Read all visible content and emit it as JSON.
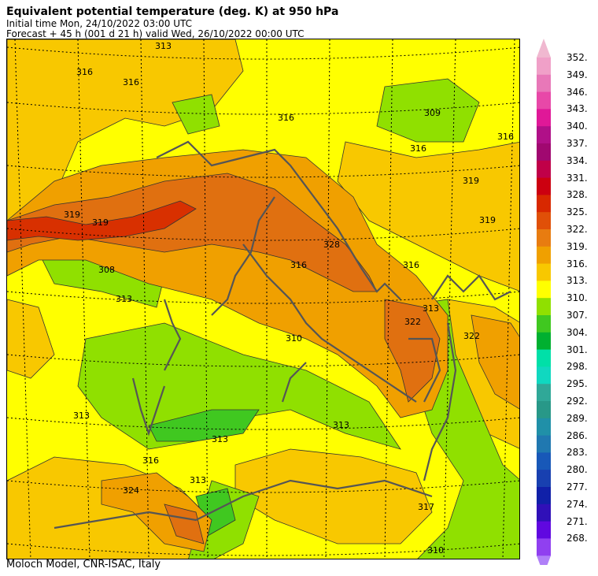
{
  "header": {
    "title": "Equivalent potential temperature (deg. K) at 950 hPa",
    "initial_time": "Initial time  Mon, 24/10/2022  03:00 UTC",
    "forecast": "Forecast  +  45 h  (001 d 21 h)  valid Wed, 26/10/2022 00:00 UTC"
  },
  "footer": "Moloch Model, CNR-ISAC, Italy",
  "contour_labels": [
    "316",
    "313",
    "316",
    "319",
    "316",
    "316",
    "316",
    "319",
    "319",
    "328",
    "308",
    "313",
    "310",
    "313",
    "313",
    "313",
    "316",
    "324",
    "313",
    "317",
    "310",
    "309",
    "313",
    "316",
    "319",
    "316",
    "322",
    "322"
  ],
  "colorbar": {
    "levels": [
      "352.",
      "349.",
      "346.",
      "343.",
      "340.",
      "337.",
      "334.",
      "331.",
      "328.",
      "325.",
      "322.",
      "319.",
      "316.",
      "313.",
      "310.",
      "307.",
      "304.",
      "301.",
      "298.",
      "295.",
      "292.",
      "289.",
      "286.",
      "283.",
      "280.",
      "277.",
      "274.",
      "271.",
      "268."
    ],
    "colors": [
      "#f0a0c8",
      "#e878b8",
      "#e848a8",
      "#e01898",
      "#b01088",
      "#a00870",
      "#c00048",
      "#cc0010",
      "#d82800",
      "#e05008",
      "#e87c10",
      "#f0a000",
      "#f8c800",
      "#ffff00",
      "#90e000",
      "#40c820",
      "#00b030",
      "#00e0a8",
      "#10d8c0",
      "#30a898",
      "#289888",
      "#2090a8",
      "#2078b0",
      "#1858b8",
      "#1840b0",
      "#1020a8",
      "#3010b8",
      "#6008e0",
      "#9040f0"
    ],
    "arrow_colors": {
      "top": "#f0b8d0",
      "bottom": "#b080f8"
    }
  }
}
